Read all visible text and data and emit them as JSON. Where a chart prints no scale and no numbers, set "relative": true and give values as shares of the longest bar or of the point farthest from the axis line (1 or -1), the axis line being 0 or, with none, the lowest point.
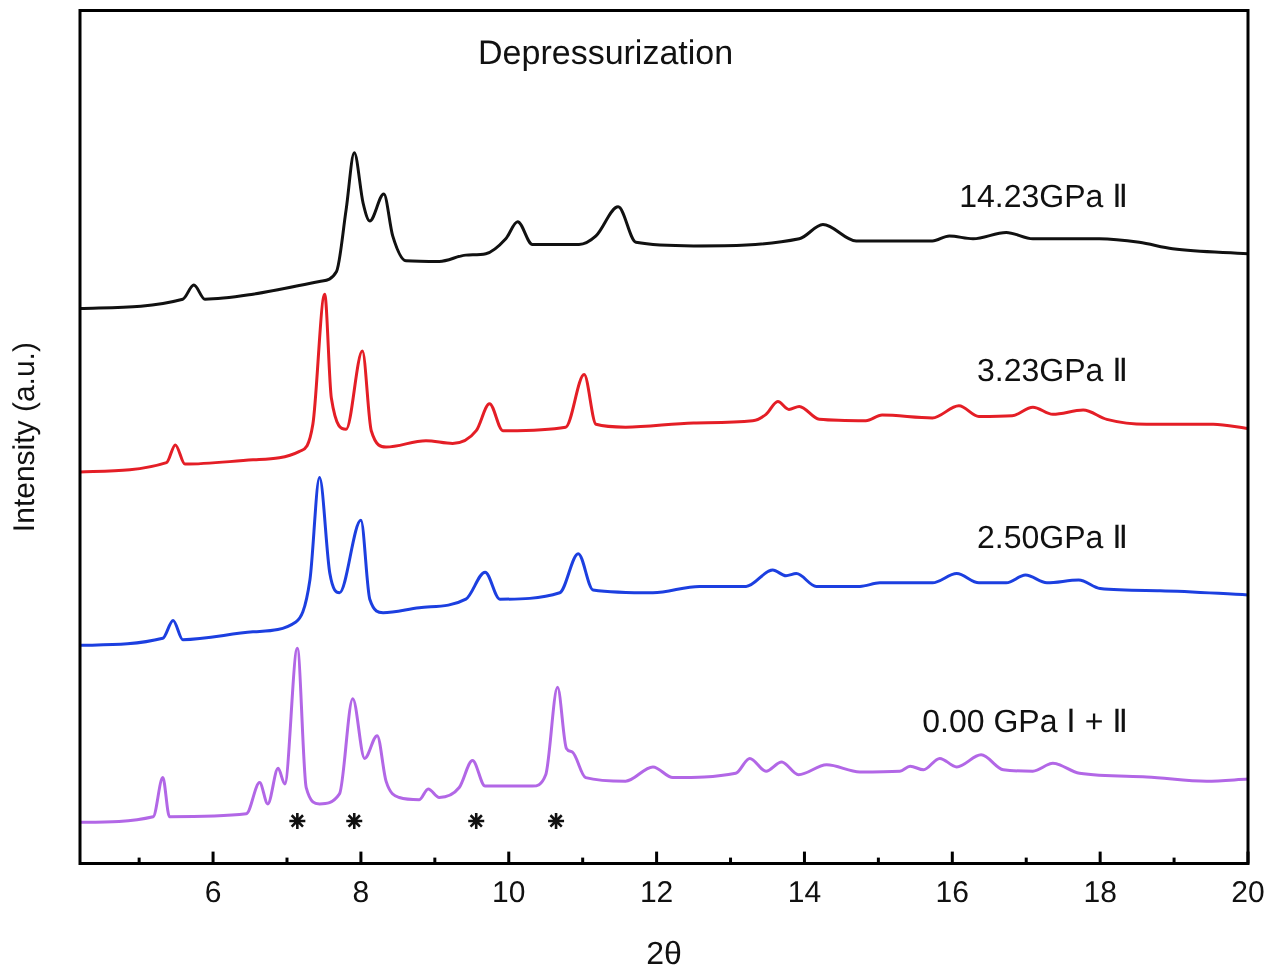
{
  "chart_data": {
    "type": "line",
    "title": "Depressurization",
    "xlabel": "2θ",
    "ylabel": "Intensity (a.u.)",
    "relative": true,
    "grid": false,
    "legend": false,
    "marker": "none",
    "line_style": "solid",
    "xlim": [
      4.2,
      20
    ],
    "xticks": [
      {
        "value": 5,
        "label": null
      },
      6,
      {
        "value": 7,
        "label": null
      },
      8,
      {
        "value": 9,
        "label": null
      },
      10,
      {
        "value": 11,
        "label": null
      },
      12,
      {
        "value": 13,
        "label": null
      },
      14,
      {
        "value": 15,
        "label": null
      },
      16,
      {
        "value": 17,
        "label": null
      },
      18,
      {
        "value": 19,
        "label": null
      },
      20
    ],
    "series": [
      {
        "name": "14.23GPa Ⅱ",
        "color": "#111111",
        "x": [
          4.2,
          5.59,
          5.74,
          5.89,
          6.54,
          7.44,
          7.67,
          7.8,
          7.91,
          8.03,
          8.12,
          8.31,
          8.43,
          8.61,
          9.06,
          9.42,
          9.69,
          9.96,
          10.12,
          10.32,
          10.95,
          11.18,
          11.48,
          11.72,
          12.5,
          13.93,
          14.25,
          14.7,
          15.73,
          15.96,
          16.28,
          16.73,
          17.09,
          17.99,
          18.53,
          18.98,
          20
        ],
        "values": [
          0.781,
          0.794,
          0.814,
          0.794,
          0.801,
          0.819,
          0.833,
          0.92,
          1,
          0.929,
          0.904,
          0.942,
          0.883,
          0.848,
          0.847,
          0.856,
          0.858,
          0.879,
          0.903,
          0.871,
          0.871,
          0.883,
          0.924,
          0.874,
          0.869,
          0.879,
          0.899,
          0.876,
          0.876,
          0.883,
          0.879,
          0.888,
          0.879,
          0.879,
          0.874,
          0.865,
          0.858
        ]
      },
      {
        "name": "3.23GPa Ⅱ",
        "color": "#e41e26",
        "x": [
          4.2,
          5.37,
          5.49,
          5.62,
          6.54,
          7.17,
          7.35,
          7.51,
          7.6,
          7.8,
          8.02,
          8.14,
          8.34,
          8.88,
          9.24,
          9.56,
          9.74,
          9.92,
          10.77,
          11.02,
          11.18,
          11.58,
          12.5,
          13.3,
          13.48,
          13.64,
          13.79,
          13.93,
          14.2,
          14.83,
          15.05,
          15.73,
          16.09,
          16.36,
          16.81,
          17.09,
          17.36,
          17.77,
          18.09,
          18.63,
          19.53,
          20
        ],
        "values": [
          0.551,
          0.564,
          0.589,
          0.562,
          0.568,
          0.58,
          0.618,
          0.801,
          0.655,
          0.611,
          0.721,
          0.609,
          0.586,
          0.595,
          0.591,
          0.609,
          0.647,
          0.609,
          0.614,
          0.688,
          0.618,
          0.614,
          0.62,
          0.623,
          0.632,
          0.65,
          0.639,
          0.643,
          0.625,
          0.623,
          0.631,
          0.627,
          0.644,
          0.629,
          0.63,
          0.642,
          0.632,
          0.638,
          0.625,
          0.618,
          0.618,
          0.612
        ]
      },
      {
        "name": "2.50GPa Ⅱ",
        "color": "#1c3fe0",
        "x": [
          4.2,
          5.32,
          5.46,
          5.59,
          6.54,
          7.12,
          7.31,
          7.44,
          7.58,
          7.71,
          8.0,
          8.12,
          8.3,
          8.79,
          9.42,
          9.68,
          9.88,
          10.69,
          10.94,
          11.14,
          11.95,
          12.58,
          13.21,
          13.57,
          13.75,
          13.89,
          14.16,
          14.75,
          15.02,
          15.73,
          16.06,
          16.36,
          16.73,
          16.99,
          17.28,
          17.71,
          18.0,
          18.81,
          20
        ],
        "values": [
          0.307,
          0.317,
          0.342,
          0.315,
          0.326,
          0.34,
          0.399,
          0.543,
          0.408,
          0.381,
          0.483,
          0.372,
          0.353,
          0.36,
          0.372,
          0.41,
          0.372,
          0.381,
          0.436,
          0.385,
          0.381,
          0.39,
          0.39,
          0.413,
          0.405,
          0.408,
          0.39,
          0.39,
          0.395,
          0.395,
          0.408,
          0.395,
          0.395,
          0.406,
          0.395,
          0.399,
          0.387,
          0.384,
          0.378
        ]
      },
      {
        "name": "0.00 GPa Ⅰ + Ⅱ",
        "color": "#b267e6",
        "x": [
          4.2,
          5.19,
          5.32,
          5.41,
          6.45,
          6.63,
          6.74,
          6.88,
          6.97,
          7.14,
          7.26,
          7.44,
          7.71,
          7.89,
          8.05,
          8.22,
          8.34,
          8.52,
          8.79,
          8.91,
          9.06,
          9.33,
          9.51,
          9.68,
          10.32,
          10.5,
          10.66,
          10.78,
          10.86,
          11.04,
          11.58,
          11.95,
          12.22,
          13.07,
          13.26,
          13.48,
          13.69,
          13.92,
          14.3,
          14.75,
          15.29,
          15.43,
          15.61,
          15.83,
          16.06,
          16.39,
          16.69,
          17.09,
          17.36,
          17.72,
          18.63,
          19.44,
          20
        ],
        "values": [
          0.058,
          0.066,
          0.121,
          0.066,
          0.07,
          0.114,
          0.084,
          0.134,
          0.112,
          0.303,
          0.107,
          0.084,
          0.098,
          0.232,
          0.148,
          0.18,
          0.116,
          0.093,
          0.09,
          0.105,
          0.093,
          0.107,
          0.145,
          0.109,
          0.109,
          0.125,
          0.248,
          0.162,
          0.157,
          0.121,
          0.116,
          0.136,
          0.121,
          0.127,
          0.148,
          0.13,
          0.143,
          0.125,
          0.139,
          0.129,
          0.13,
          0.137,
          0.132,
          0.148,
          0.136,
          0.153,
          0.132,
          0.13,
          0.141,
          0.127,
          0.122,
          0.116,
          0.119
        ]
      },
      {
        "type": "scatter",
        "marker": "cross",
        "color": "#111111",
        "x": [
          7.14,
          7.91,
          9.56,
          10.64
        ],
        "values": [
          0.06,
          0.06,
          0.06,
          0.06
        ]
      }
    ]
  }
}
